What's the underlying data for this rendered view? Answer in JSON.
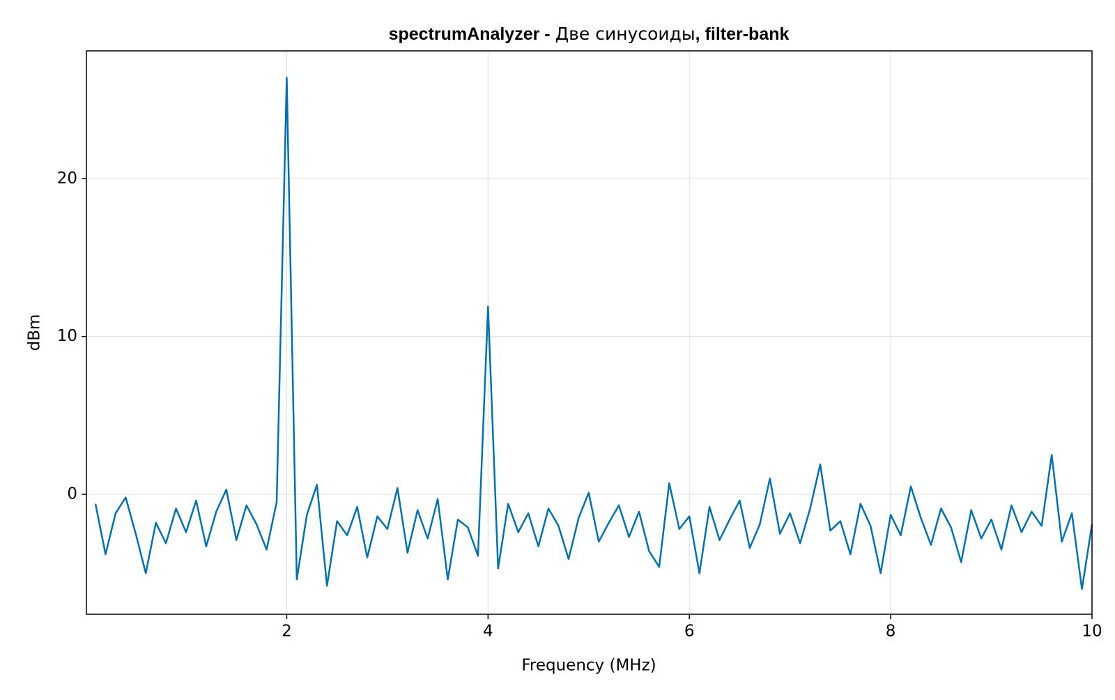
{
  "chart_data": {
    "type": "line",
    "title": [
      "spectrumAnalyzer -",
      "Две синусоиды",
      ", filter-bank"
    ],
    "x_label": "Frequency (MHz)",
    "y_label": "dBm",
    "x": [
      0.1,
      0.2,
      0.3,
      0.4,
      0.5,
      0.6,
      0.7,
      0.8,
      0.9,
      1.0,
      1.1,
      1.2,
      1.3,
      1.4,
      1.5,
      1.6,
      1.7,
      1.8,
      1.9,
      2.0,
      2.1,
      2.2,
      2.3,
      2.4,
      2.5,
      2.6,
      2.7,
      2.8,
      2.9,
      3.0,
      3.1,
      3.2,
      3.3,
      3.4,
      3.5,
      3.6,
      3.7,
      3.8,
      3.9,
      4.0,
      4.1,
      4.2,
      4.3,
      4.4,
      4.5,
      4.6,
      4.7,
      4.8,
      4.9,
      5.0,
      5.1,
      5.2,
      5.3,
      5.4,
      5.5,
      5.6,
      5.7,
      5.8,
      5.9,
      6.0,
      6.1,
      6.2,
      6.3,
      6.4,
      6.5,
      6.6,
      6.7,
      6.8,
      6.9,
      7.0,
      7.1,
      7.2,
      7.3,
      7.4,
      7.5,
      7.6,
      7.7,
      7.8,
      7.9,
      8.0,
      8.1,
      8.2,
      8.3,
      8.4,
      8.5,
      8.6,
      8.7,
      8.8,
      8.9,
      9.0,
      9.1,
      9.2,
      9.3,
      9.4,
      9.5,
      9.6,
      9.7,
      9.8,
      9.9,
      10.0
    ],
    "series": [
      {
        "color": "#0072b2",
        "values": [
          -0.6,
          -3.8,
          -1.2,
          -0.2,
          -2.5,
          -5.0,
          -1.8,
          -3.1,
          -0.9,
          -2.4,
          -0.4,
          -3.3,
          -1.1,
          0.3,
          -2.9,
          -0.7,
          -1.9,
          -3.5,
          -0.5,
          26.4,
          -5.4,
          -1.3,
          0.6,
          -5.8,
          -1.7,
          -2.6,
          -0.8,
          -4.0,
          -1.4,
          -2.2,
          0.4,
          -3.7,
          -1.0,
          -2.8,
          -0.3,
          -5.4,
          -1.6,
          -2.1,
          -3.9,
          11.9,
          -4.7,
          -0.6,
          -2.4,
          -1.2,
          -3.3,
          -0.9,
          -2.0,
          -4.1,
          -1.5,
          0.1,
          -3.0,
          -1.8,
          -0.7,
          -2.7,
          -1.1,
          -3.6,
          -4.6,
          0.7,
          -2.2,
          -1.4,
          -5.0,
          -0.8,
          -2.9,
          -1.6,
          -0.4,
          -3.4,
          -1.9,
          1.0,
          -2.5,
          -1.2,
          -3.1,
          -0.9,
          1.9,
          -2.3,
          -1.7,
          -3.8,
          -0.6,
          -2.0,
          -5.0,
          -1.3,
          -2.6,
          0.5,
          -1.5,
          -3.2,
          -0.9,
          -2.1,
          -4.3,
          -1.0,
          -2.8,
          -1.6,
          -3.5,
          -0.7,
          -2.4,
          -1.1,
          -2.0,
          2.5,
          -3.0,
          -1.2,
          -6.0,
          -1.9
        ]
      }
    ],
    "xlim": [
      0.01,
      10
    ],
    "ylim": [
      -7.6,
      28.1
    ],
    "xticks": [
      2,
      4,
      6,
      8,
      10
    ],
    "yticks": [
      0,
      10,
      20
    ],
    "grid": true
  }
}
